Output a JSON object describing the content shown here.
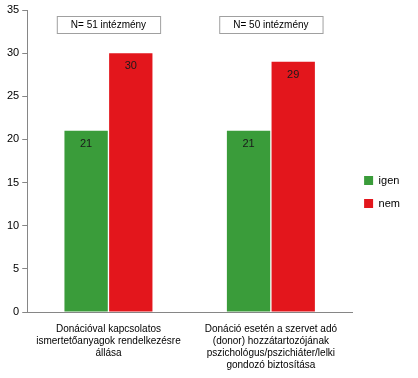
{
  "chart_data": {
    "type": "bar",
    "categories": [
      "Donációval kapcsolatos ismertetőanyagok rendelkezésre állása",
      "Donáció esetén a szervet adó (donor) hozzátartozójának pszichológus/pszichiáter/lelki gondozó biztosítása"
    ],
    "series": [
      {
        "name": "igen",
        "color": "#3a9c3a",
        "values": [
          21,
          21
        ]
      },
      {
        "name": "nem",
        "color": "#e3161c",
        "values": [
          30,
          29
        ]
      }
    ],
    "annotations": [
      "N= 51 intézmény",
      "N= 50 intézmény"
    ],
    "ylim": [
      0,
      35
    ],
    "yticks": [
      0,
      5,
      10,
      15,
      20,
      25,
      30,
      35
    ],
    "grid": false,
    "legend": "right",
    "data_labels": true
  }
}
